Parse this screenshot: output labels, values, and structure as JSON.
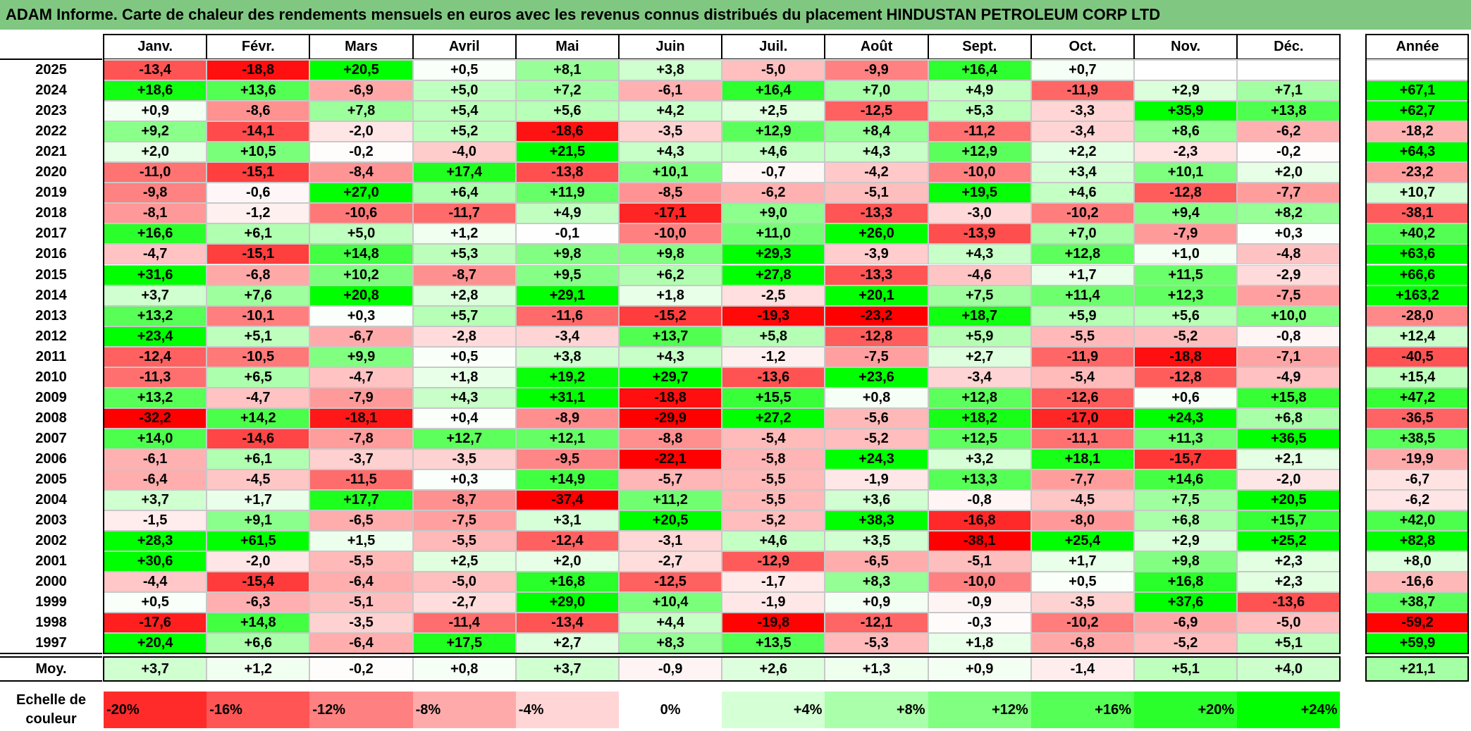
{
  "title": "ADAM Informe. Carte de chaleur des rendements mensuels en euros avec les revenus connus distribués du placement HINDUSTAN PETROLEUM CORP LTD",
  "colors": {
    "title_bg": "#80c882",
    "neg_max": "#ff0000",
    "pos_max": "#00ff00",
    "neutral": "#ffffff"
  },
  "chart_data": {
    "type": "heatmap",
    "title": "ADAM Informe. Carte de chaleur des rendements mensuels en euros avec les revenus connus distribués du placement HINDUSTAN PETROLEUM CORP LTD",
    "columns": [
      "Janv.",
      "Févr.",
      "Mars",
      "Avril",
      "Mai",
      "Juin",
      "Juil.",
      "Août",
      "Sept.",
      "Oct.",
      "Nov.",
      "Déc."
    ],
    "year_header": "Année",
    "rows": [
      {
        "year": "2025",
        "months": [
          "-13,4",
          "-18,8",
          "+20,5",
          "+0,5",
          "+8,1",
          "+3,8",
          "-5,0",
          "-9,9",
          "+16,4",
          "+0,7",
          "",
          ""
        ],
        "annual": ""
      },
      {
        "year": "2024",
        "months": [
          "+18,6",
          "+13,6",
          "-6,9",
          "+5,0",
          "+7,2",
          "-6,1",
          "+16,4",
          "+7,0",
          "+4,9",
          "-11,9",
          "+2,9",
          "+7,1"
        ],
        "annual": "+67,1"
      },
      {
        "year": "2023",
        "months": [
          "+0,9",
          "-8,6",
          "+7,8",
          "+5,4",
          "+5,6",
          "+4,2",
          "+2,5",
          "-12,5",
          "+5,3",
          "-3,3",
          "+35,9",
          "+13,8"
        ],
        "annual": "+62,7"
      },
      {
        "year": "2022",
        "months": [
          "+9,2",
          "-14,1",
          "-2,0",
          "+5,2",
          "-18,6",
          "-3,5",
          "+12,9",
          "+8,4",
          "-11,2",
          "-3,4",
          "+8,6",
          "-6,2"
        ],
        "annual": "-18,2"
      },
      {
        "year": "2021",
        "months": [
          "+2,0",
          "+10,5",
          "-0,2",
          "-4,0",
          "+21,5",
          "+4,3",
          "+4,6",
          "+4,3",
          "+12,9",
          "+2,2",
          "-2,3",
          "-0,2"
        ],
        "annual": "+64,3"
      },
      {
        "year": "2020",
        "months": [
          "-11,0",
          "-15,1",
          "-8,4",
          "+17,4",
          "-13,8",
          "+10,1",
          "-0,7",
          "-4,2",
          "-10,0",
          "+3,4",
          "+10,1",
          "+2,0"
        ],
        "annual": "-23,2"
      },
      {
        "year": "2019",
        "months": [
          "-9,8",
          "-0,6",
          "+27,0",
          "+6,4",
          "+11,9",
          "-8,5",
          "-6,2",
          "-5,1",
          "+19,5",
          "+4,6",
          "-12,8",
          "-7,7"
        ],
        "annual": "+10,7"
      },
      {
        "year": "2018",
        "months": [
          "-8,1",
          "-1,2",
          "-10,6",
          "-11,7",
          "+4,9",
          "-17,1",
          "+9,0",
          "-13,3",
          "-3,0",
          "-10,2",
          "+9,4",
          "+8,2"
        ],
        "annual": "-38,1"
      },
      {
        "year": "2017",
        "months": [
          "+16,6",
          "+6,1",
          "+5,0",
          "+1,2",
          "-0,1",
          "-10,0",
          "+11,0",
          "+26,0",
          "-13,9",
          "+7,0",
          "-7,9",
          "+0,3"
        ],
        "annual": "+40,2"
      },
      {
        "year": "2016",
        "months": [
          "-4,7",
          "-15,1",
          "+14,8",
          "+5,3",
          "+9,8",
          "+9,8",
          "+29,3",
          "-3,9",
          "+4,3",
          "+12,8",
          "+1,0",
          "-4,8"
        ],
        "annual": "+63,6"
      },
      {
        "year": "2015",
        "months": [
          "+31,6",
          "-6,8",
          "+10,2",
          "-8,7",
          "+9,5",
          "+6,2",
          "+27,8",
          "-13,3",
          "-4,6",
          "+1,7",
          "+11,5",
          "-2,9"
        ],
        "annual": "+66,6"
      },
      {
        "year": "2014",
        "months": [
          "+3,7",
          "+7,6",
          "+20,8",
          "+2,8",
          "+29,1",
          "+1,8",
          "-2,5",
          "+20,1",
          "+7,5",
          "+11,4",
          "+12,3",
          "-7,5"
        ],
        "annual": "+163,2"
      },
      {
        "year": "2013",
        "months": [
          "+13,2",
          "-10,1",
          "+0,3",
          "+5,7",
          "-11,6",
          "-15,2",
          "-19,3",
          "-23,2",
          "+18,7",
          "+5,9",
          "+5,6",
          "+10,0"
        ],
        "annual": "-28,0"
      },
      {
        "year": "2012",
        "months": [
          "+23,4",
          "+5,1",
          "-6,7",
          "-2,8",
          "-3,4",
          "+13,7",
          "+5,8",
          "-12,8",
          "+5,9",
          "-5,5",
          "-5,2",
          "-0,8"
        ],
        "annual": "+12,4"
      },
      {
        "year": "2011",
        "months": [
          "-12,4",
          "-10,5",
          "+9,9",
          "+0,5",
          "+3,8",
          "+4,3",
          "-1,2",
          "-7,5",
          "+2,7",
          "-11,9",
          "-18,8",
          "-7,1"
        ],
        "annual": "-40,5"
      },
      {
        "year": "2010",
        "months": [
          "-11,3",
          "+6,5",
          "-4,7",
          "+1,8",
          "+19,2",
          "+29,7",
          "-13,6",
          "+23,6",
          "-3,4",
          "-5,4",
          "-12,8",
          "-4,9"
        ],
        "annual": "+15,4"
      },
      {
        "year": "2009",
        "months": [
          "+13,2",
          "-4,7",
          "-7,9",
          "+4,3",
          "+31,1",
          "-18,8",
          "+15,5",
          "+0,8",
          "+12,8",
          "-12,6",
          "+0,6",
          "+15,8"
        ],
        "annual": "+47,2"
      },
      {
        "year": "2008",
        "months": [
          "-32,2",
          "+14,2",
          "-18,1",
          "+0,4",
          "-8,9",
          "-29,9",
          "+27,2",
          "-5,6",
          "+18,2",
          "-17,0",
          "+24,3",
          "+6,8"
        ],
        "annual": "-36,5"
      },
      {
        "year": "2007",
        "months": [
          "+14,0",
          "-14,6",
          "-7,8",
          "+12,7",
          "+12,1",
          "-8,8",
          "-5,4",
          "-5,2",
          "+12,5",
          "-11,1",
          "+11,3",
          "+36,5"
        ],
        "annual": "+38,5"
      },
      {
        "year": "2006",
        "months": [
          "-6,1",
          "+6,1",
          "-3,7",
          "-3,5",
          "-9,5",
          "-22,1",
          "-5,8",
          "+24,3",
          "+3,2",
          "+18,1",
          "-15,7",
          "+2,1"
        ],
        "annual": "-19,9"
      },
      {
        "year": "2005",
        "months": [
          "-6,4",
          "-4,5",
          "-11,5",
          "+0,3",
          "+14,9",
          "-5,7",
          "-5,5",
          "-1,9",
          "+13,3",
          "-7,7",
          "+14,6",
          "-2,0"
        ],
        "annual": "-6,7"
      },
      {
        "year": "2004",
        "months": [
          "+3,7",
          "+1,7",
          "+17,7",
          "-8,7",
          "-37,4",
          "+11,2",
          "-5,5",
          "+3,6",
          "-0,8",
          "-4,5",
          "+7,5",
          "+20,5"
        ],
        "annual": "-6,2"
      },
      {
        "year": "2003",
        "months": [
          "-1,5",
          "+9,1",
          "-6,5",
          "-7,5",
          "+3,1",
          "+20,5",
          "-5,2",
          "+38,3",
          "-16,8",
          "-8,0",
          "+6,8",
          "+15,7"
        ],
        "annual": "+42,0"
      },
      {
        "year": "2002",
        "months": [
          "+28,3",
          "+61,5",
          "+1,5",
          "-5,5",
          "-12,4",
          "-3,1",
          "+4,6",
          "+3,5",
          "-38,1",
          "+25,4",
          "+2,9",
          "+25,2"
        ],
        "annual": "+82,8"
      },
      {
        "year": "2001",
        "months": [
          "+30,6",
          "-2,0",
          "-5,5",
          "+2,5",
          "+2,0",
          "-2,7",
          "-12,9",
          "-6,5",
          "-5,1",
          "+1,7",
          "+9,8",
          "+2,3"
        ],
        "annual": "+8,0"
      },
      {
        "year": "2000",
        "months": [
          "-4,4",
          "-15,4",
          "-6,4",
          "-5,0",
          "+16,8",
          "-12,5",
          "-1,7",
          "+8,3",
          "-10,0",
          "+0,5",
          "+16,8",
          "+2,3"
        ],
        "annual": "-16,6"
      },
      {
        "year": "1999",
        "months": [
          "+0,5",
          "-6,3",
          "-5,1",
          "-2,7",
          "+29,0",
          "+10,4",
          "-1,9",
          "+0,9",
          "-0,9",
          "-3,5",
          "+37,6",
          "-13,6"
        ],
        "annual": "+38,7"
      },
      {
        "year": "1998",
        "months": [
          "-17,6",
          "+14,8",
          "-3,5",
          "-11,4",
          "-13,4",
          "+4,4",
          "-19,8",
          "-12,1",
          "-0,3",
          "-10,2",
          "-6,9",
          "-5,0"
        ],
        "annual": "-59,2"
      },
      {
        "year": "1997",
        "months": [
          "+20,4",
          "+6,6",
          "-6,4",
          "+17,5",
          "+2,7",
          "+8,3",
          "+13,5",
          "-5,3",
          "+1,8",
          "-6,8",
          "-5,2",
          "+5,1"
        ],
        "annual": "+59,9"
      }
    ],
    "average": {
      "label": "Moy.",
      "months": [
        "+3,7",
        "+1,2",
        "-0,2",
        "+0,8",
        "+3,7",
        "-0,9",
        "+2,6",
        "+1,3",
        "+0,9",
        "-1,4",
        "+5,1",
        "+4,0"
      ],
      "annual": "+21,1"
    },
    "scale": {
      "label_line1": "Echelle de",
      "label_line2": "couleur",
      "steps": [
        {
          "label": "-20%",
          "value": -20
        },
        {
          "label": "-16%",
          "value": -16
        },
        {
          "label": "-12%",
          "value": -12
        },
        {
          "label": "-8%",
          "value": -8
        },
        {
          "label": "-4%",
          "value": -4
        },
        {
          "label": "0%",
          "value": 0
        },
        {
          "label": "+4%",
          "value": 4
        },
        {
          "label": "+8%",
          "value": 8
        },
        {
          "label": "+12%",
          "value": 12
        },
        {
          "label": "+16%",
          "value": 16
        },
        {
          "label": "+20%",
          "value": 20
        },
        {
          "label": "+24%",
          "value": 24
        }
      ]
    }
  }
}
